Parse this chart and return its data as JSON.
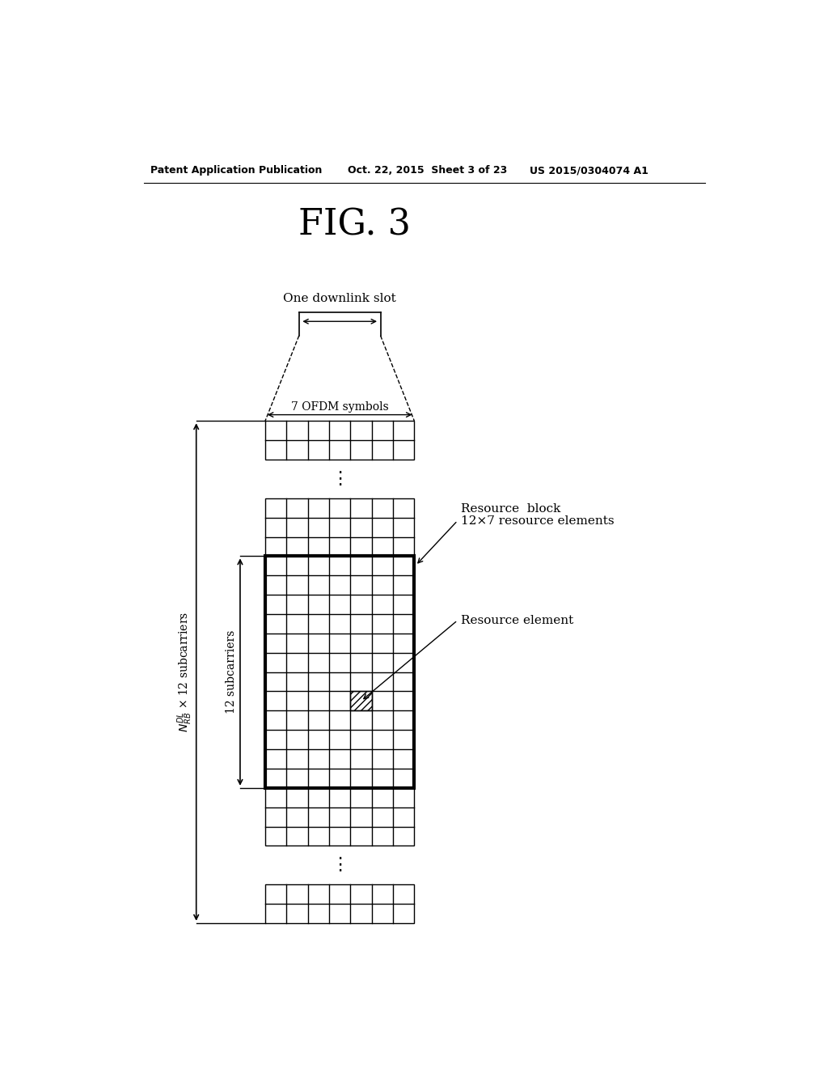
{
  "fig_title": "FIG. 3",
  "header_left": "Patent Application Publication",
  "header_mid": "Oct. 22, 2015  Sheet 3 of 23",
  "header_right": "US 2015/0304074 A1",
  "background": "#ffffff",
  "label_one_downlink": "One downlink slot",
  "label_ofdm": "7 OFDM symbols",
  "label_resource_block_line1": "Resource  block",
  "label_resource_block_line2": "12×7 resource elements",
  "label_resource_element": "Resource element",
  "label_n_sub": "N",
  "label_n_rest": "DL × 12 subcarriers",
  "label_12_subcarriers": "12 subcarriers"
}
